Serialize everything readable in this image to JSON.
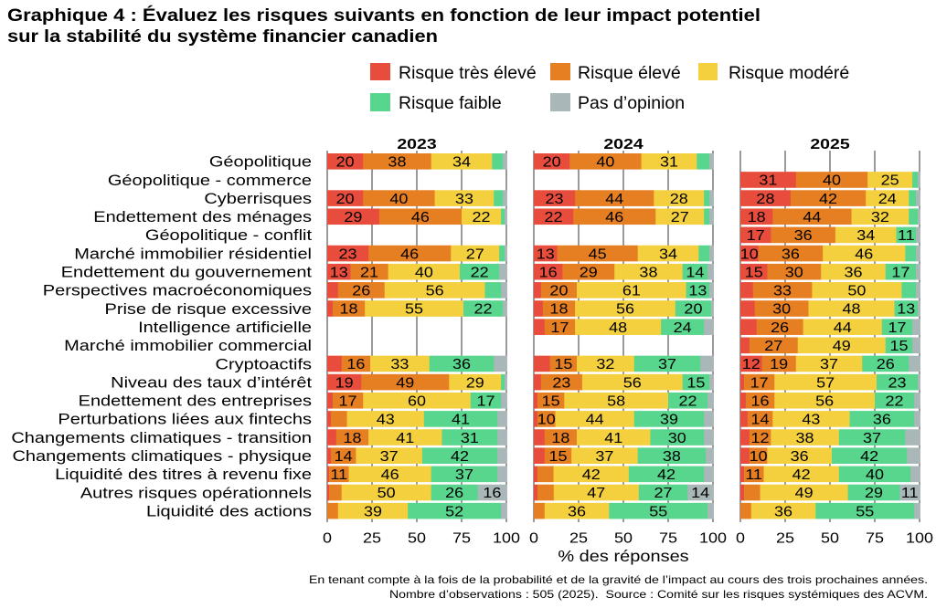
{
  "chart_data": {
    "type": "bar",
    "orientation": "horizontal",
    "stacked": true,
    "title": [
      "Graphique 4 : Évaluez les risques suivants en fonction de leur impact potentiel",
      "sur la stabilité du système financier canadien"
    ],
    "xlabel": "% des réponses",
    "ylabel": "",
    "xlim": [
      0,
      100
    ],
    "xticks": [
      0,
      25,
      50,
      75,
      100
    ],
    "grid": "vertical",
    "legend_position": "top-right",
    "data_label_min": 10,
    "series": [
      {
        "name": "Risque très élevé",
        "color": "#e74c3c"
      },
      {
        "name": "Risque élevé",
        "color": "#e67e22"
      },
      {
        "name": "Risque modéré",
        "color": "#f4d03f"
      },
      {
        "name": "Risque faible",
        "color": "#58d68d"
      },
      {
        "name": "Pas d’opinion",
        "color": "#aab7b8"
      }
    ],
    "categories": [
      "Géopolitique",
      "Géopolitique - commerce",
      "Cyberrisques",
      "Endettement des ménages",
      "Géopolitique - conflit",
      "Marché immobilier résidentiel",
      "Endettement du gouvernement",
      "Perspectives macroéconomiques",
      "Prise de risque excessive",
      "Intelligence artificielle",
      "Marché immobilier commercial",
      "Cryptoactifs",
      "Niveau des taux d’intérêt",
      "Endettement des entreprises",
      "Perturbations liées aux fintechs",
      "Changements climatiques - transition",
      "Changements climatiques - physique",
      "Liquidité des titres à revenu fixe",
      "Autres risques opérationnels",
      "Liquidité des actions"
    ],
    "panels": [
      {
        "year": "2023",
        "series": [
          {
            "name": "Risque très élevé",
            "values": [
              20,
              null,
              20,
              29,
              null,
              23,
              13,
              6,
              3,
              null,
              null,
              8,
              19,
              3,
              2,
              5,
              2,
              1,
              1,
              0
            ]
          },
          {
            "name": "Risque élevé",
            "values": [
              38,
              null,
              40,
              46,
              null,
              46,
              21,
              26,
              18,
              null,
              null,
              16,
              49,
              17,
              9,
              18,
              14,
              11,
              7,
              6
            ]
          },
          {
            "name": "Risque modéré",
            "values": [
              34,
              null,
              33,
              22,
              null,
              27,
              40,
              56,
              55,
              null,
              null,
              33,
              29,
              60,
              43,
              41,
              37,
              46,
              50,
              39
            ]
          },
          {
            "name": "Risque faible",
            "values": [
              6,
              null,
              5,
              2,
              null,
              3,
              22,
              9,
              22,
              null,
              null,
              36,
              2,
              17,
              41,
              31,
              42,
              37,
              26,
              52
            ]
          },
          {
            "name": "Pas d’opinion",
            "values": [
              2,
              null,
              2,
              1,
              null,
              1,
              4,
              3,
              2,
              null,
              null,
              7,
              1,
              3,
              5,
              5,
              5,
              5,
              16,
              3
            ]
          }
        ]
      },
      {
        "year": "2024",
        "series": [
          {
            "name": "Risque très élevé",
            "values": [
              20,
              null,
              23,
              22,
              null,
              13,
              16,
              4,
              5,
              6,
              null,
              9,
              4,
              2,
              2,
              6,
              6,
              2,
              2,
              0
            ]
          },
          {
            "name": "Risque élevé",
            "values": [
              40,
              null,
              44,
              46,
              null,
              45,
              29,
              20,
              18,
              17,
              null,
              15,
              23,
              15,
              10,
              18,
              15,
              9,
              9,
              6
            ]
          },
          {
            "name": "Risque modéré",
            "values": [
              31,
              null,
              28,
              27,
              null,
              34,
              38,
              61,
              56,
              48,
              null,
              32,
              56,
              58,
              44,
              41,
              37,
              42,
              47,
              36
            ]
          },
          {
            "name": "Risque faible",
            "values": [
              7,
              null,
              3,
              3,
              null,
              6,
              14,
              13,
              20,
              24,
              null,
              37,
              15,
              22,
              39,
              30,
              38,
              42,
              27,
              55
            ]
          },
          {
            "name": "Pas d’opinion",
            "values": [
              2,
              null,
              2,
              2,
              null,
              2,
              3,
              2,
              1,
              5,
              null,
              7,
              2,
              3,
              5,
              5,
              4,
              5,
              14,
              3
            ]
          }
        ]
      },
      {
        "year": "2025",
        "series": [
          {
            "name": "Risque très élevé",
            "values": [
              null,
              31,
              28,
              18,
              17,
              10,
              15,
              7,
              8,
              9,
              5,
              12,
              2,
              3,
              4,
              5,
              5,
              2,
              2,
              0
            ]
          },
          {
            "name": "Risque élevé",
            "values": [
              null,
              40,
              42,
              44,
              36,
              36,
              30,
              33,
              30,
              26,
              27,
              19,
              17,
              16,
              14,
              12,
              10,
              11,
              9,
              6
            ]
          },
          {
            "name": "Risque modéré",
            "values": [
              null,
              25,
              24,
              32,
              34,
              46,
              36,
              50,
              48,
              44,
              49,
              37,
              57,
              56,
              43,
              38,
              36,
              42,
              49,
              36
            ]
          },
          {
            "name": "Risque faible",
            "values": [
              null,
              3,
              4,
              5,
              11,
              6,
              17,
              8,
              13,
              17,
              15,
              26,
              23,
              22,
              36,
              37,
              42,
              40,
              29,
              55
            ]
          },
          {
            "name": "Pas d’opinion",
            "values": [
              null,
              1,
              2,
              1,
              2,
              2,
              2,
              2,
              1,
              4,
              4,
              6,
              1,
              3,
              3,
              8,
              7,
              5,
              11,
              3
            ]
          }
        ]
      }
    ],
    "notes": [
      "En tenant compte à la fois de la probabilité et de la gravité de l’impact au cours des trois prochaines années.",
      "Nombre d’observations : 505 (2025).  Source : Comité sur les risques systémiques des ACVM."
    ]
  }
}
